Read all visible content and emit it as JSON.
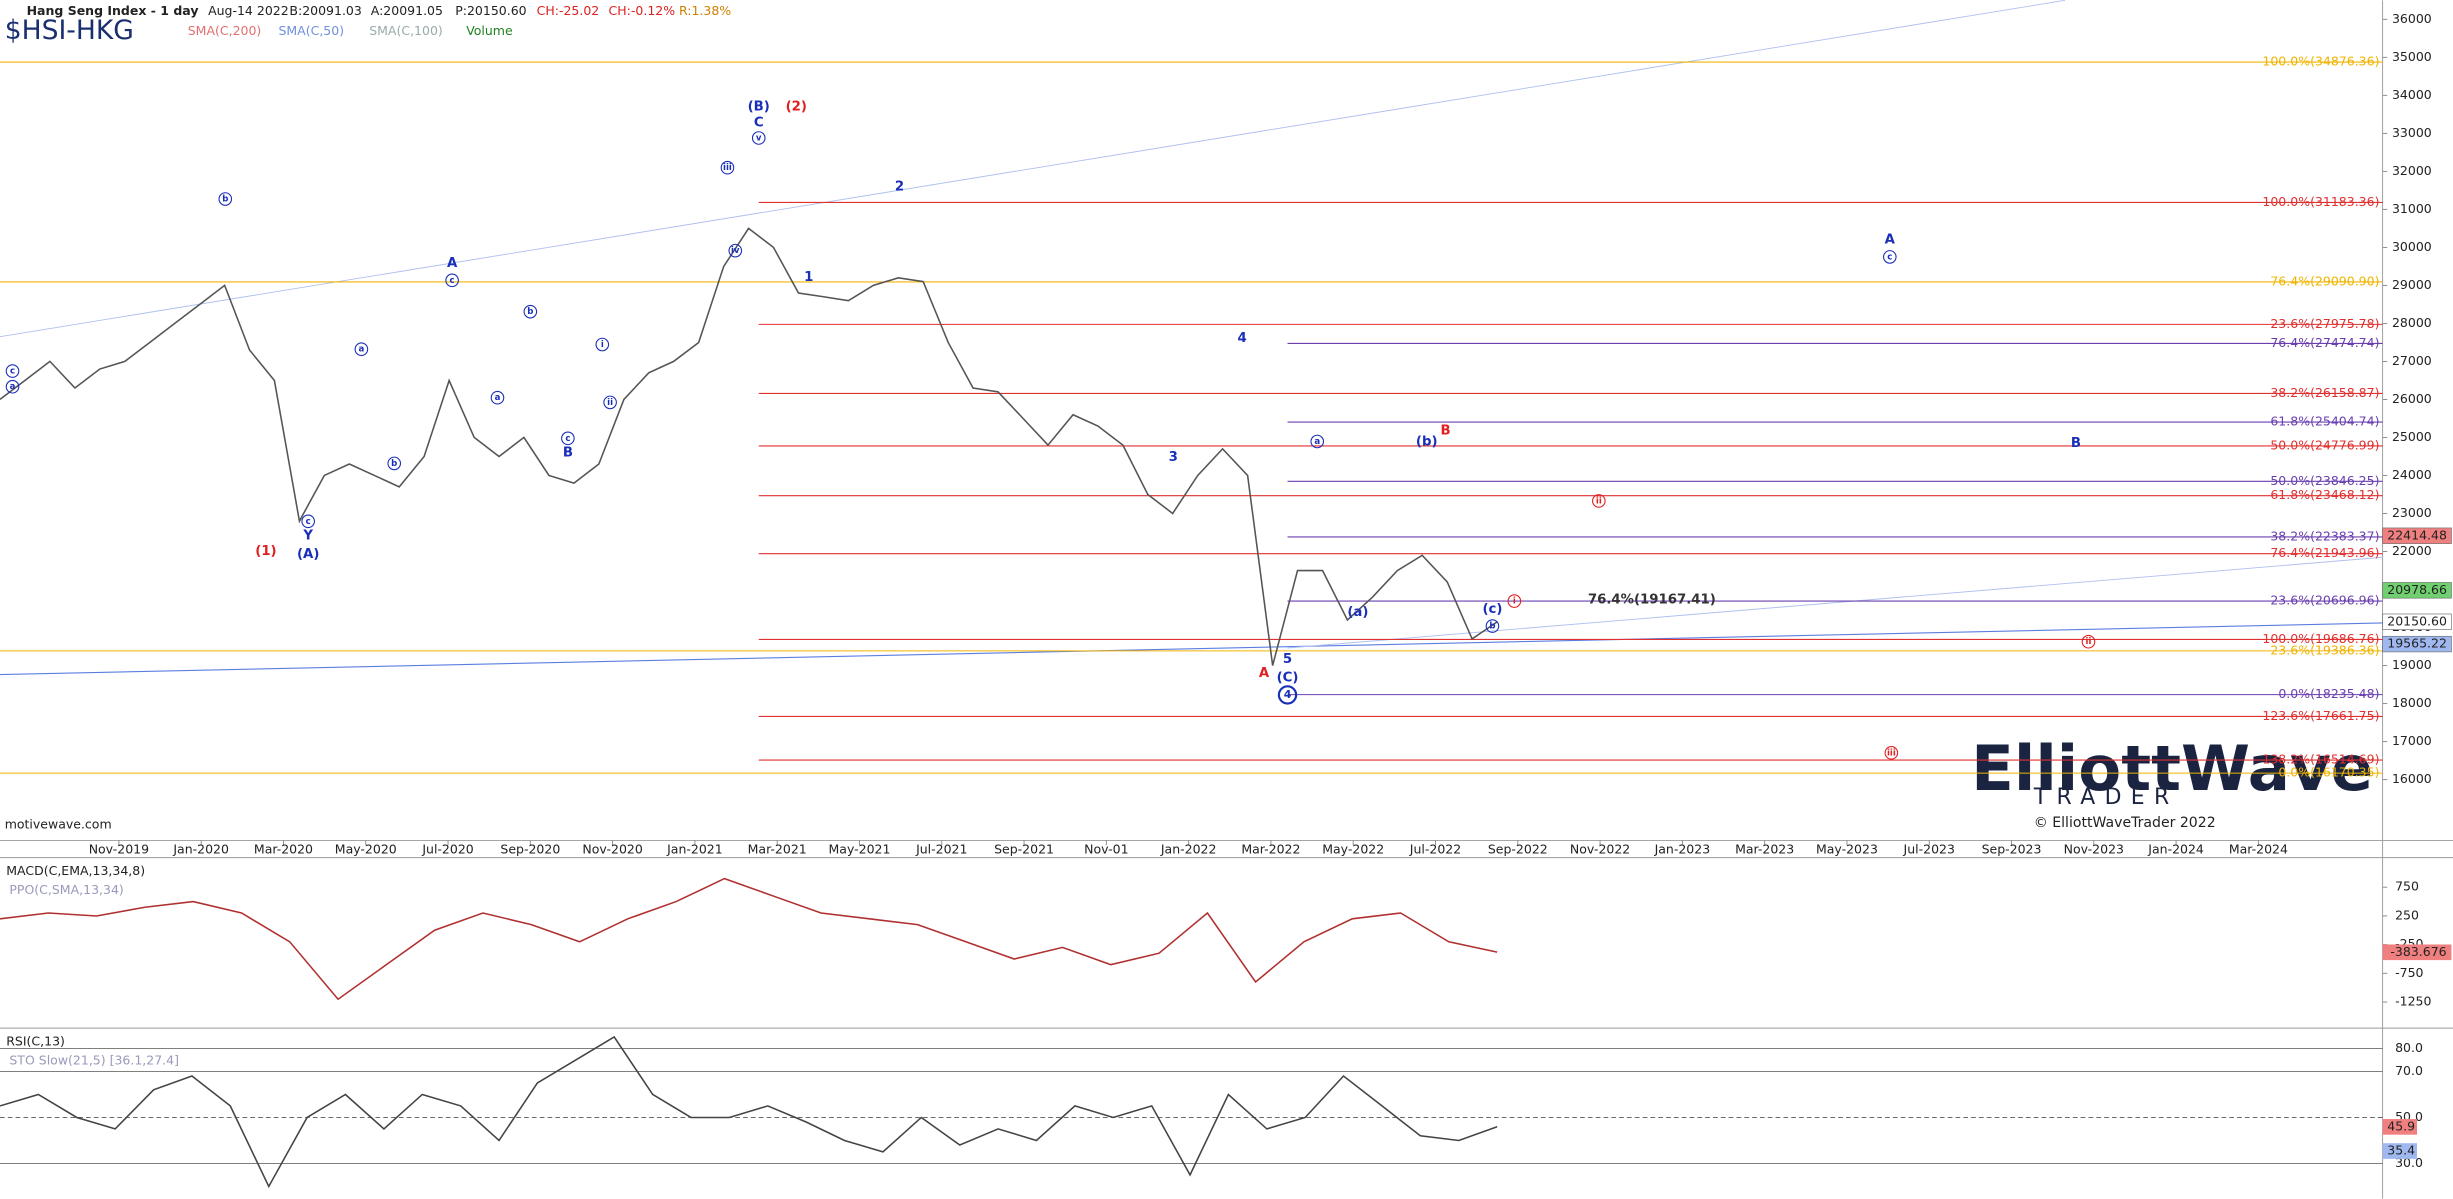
{
  "chart_data": {
    "type": "line",
    "header": {
      "title": "Hang Seng Index - 1 day",
      "date": "Aug-14 2022",
      "bid": "B:20091.03",
      "ask": "A:20091.05",
      "price": "P:20150.60",
      "change": "CH:-25.02",
      "change_pct": "CH:-0.12%",
      "range": "R:1.38%",
      "symbol": "$HSI-HKG",
      "studies": [
        "SMA(C,200)",
        "SMA(C,50)",
        "SMA(C,100)",
        "Volume"
      ]
    },
    "footer": "motivewave.com",
    "copyright": "© ElliottWaveTrader 2022",
    "logo": [
      "ElliottWave",
      "TRADER"
    ],
    "categories": [
      "Nov-2019",
      "Jan-2020",
      "Mar-2020",
      "May-2020",
      "Jul-2020",
      "Sep-2020",
      "Nov-2020",
      "Jan-2021",
      "Mar-2021",
      "May-2021",
      "Jul-2021",
      "Sep-2021",
      "Nov-01",
      "Jan-2022",
      "Mar-2022",
      "May-2022",
      "Jul-2022",
      "Sep-2022",
      "Nov-2022",
      "Jan-2023",
      "Mar-2023",
      "May-2023",
      "Jul-2023",
      "Sep-2023",
      "Nov-2023",
      "Jan-2024",
      "Mar-2024"
    ],
    "ylim": [
      14400,
      36500
    ],
    "yticks": [
      16000,
      17000,
      18000,
      19000,
      20000,
      21000,
      22000,
      23000,
      24000,
      25000,
      26000,
      27000,
      28000,
      29000,
      30000,
      31000,
      32000,
      33000,
      34000,
      35000,
      36000
    ],
    "price": {
      "color": "#555555",
      "values": [
        26000,
        26500,
        27000,
        26300,
        26800,
        27000,
        27500,
        28000,
        28500,
        29000,
        27300,
        26500,
        22800,
        24000,
        24300,
        24000,
        23700,
        24500,
        26500,
        25000,
        24500,
        25000,
        24000,
        23800,
        24300,
        26000,
        26700,
        27000,
        27500,
        29500,
        30500,
        30000,
        28800,
        28700,
        28600,
        29000,
        29200,
        29100,
        27500,
        26300,
        26200,
        25500,
        24800,
        25600,
        25300,
        24800,
        23500,
        23000,
        24000,
        24700,
        24000,
        19000,
        21500,
        21500,
        20200,
        20800,
        21500,
        21900,
        21200,
        19700,
        20150
      ]
    },
    "fib_groups": [
      {
        "color": "#f0b400",
        "levels": [
          {
            "value": 34876.36,
            "label": "100.0%(34876.36)"
          },
          {
            "value": 29090.9,
            "label": "76.4%(29090.90)"
          },
          {
            "value": 19386.36,
            "label": "23.6%(19386.36)"
          },
          {
            "value": 16170.35,
            "label": "0.0%(16170.35)"
          }
        ]
      },
      {
        "color": "#e03030",
        "levels": [
          {
            "value": 31183.36,
            "label": "100.0%(31183.36)"
          },
          {
            "value": 27975.78,
            "label": "23.6%(27975.78)"
          },
          {
            "value": 26158.87,
            "label": "38.2%(26158.87)"
          },
          {
            "value": 24776.99,
            "label": "50.0%(24776.99)"
          },
          {
            "value": 23468.12,
            "label": "61.8%(23468.12)"
          },
          {
            "value": 21943.96,
            "label": "76.4%(21943.96)"
          },
          {
            "value": 19686.76,
            "label": "100.0%(19686.76)"
          },
          {
            "value": 17661.75,
            "label": "123.6%(17661.75)"
          },
          {
            "value": 16514.69,
            "label": "138.2%(16514.69)"
          }
        ]
      },
      {
        "color": "#6a3fb0",
        "levels": [
          {
            "value": 27474.74,
            "label": "76.4%(27474.74)"
          },
          {
            "value": 25404.74,
            "label": "61.8%(25404.74)"
          },
          {
            "value": 23846.25,
            "label": "50.0%(23846.25)"
          },
          {
            "value": 22383.37,
            "label": "38.2%(22383.37)"
          },
          {
            "value": 20696.96,
            "label": "23.6%(20696.96)"
          },
          {
            "value": 18235.48,
            "label": "0.0%(18235.48)"
          }
        ]
      }
    ],
    "price_tags": [
      {
        "value": 22414.48,
        "label": "22414.48",
        "color": "#f08080"
      },
      {
        "value": 20978.66,
        "label": "20978.66",
        "color": "#70d070"
      },
      {
        "value": 20150.6,
        "label": "20150.60",
        "color": "#ffffff"
      },
      {
        "value": 19565.22,
        "label": "19565.22",
        "color": "#a0b8f0"
      }
    ],
    "annotations": [
      {
        "text": "(B)",
        "color": "#1a2fb8"
      },
      {
        "text": "C",
        "color": "#1a2fb8"
      },
      {
        "text": "(2)",
        "color": "#e02020"
      },
      {
        "text": "(1)",
        "color": "#e02020"
      },
      {
        "text": "Y",
        "color": "#1a2fb8"
      },
      {
        "text": "(A)",
        "color": "#1a2fb8"
      },
      {
        "text": "A",
        "color": "#1a2fb8"
      },
      {
        "text": "B",
        "color": "#1a2fb8"
      },
      {
        "text": "1",
        "color": "#1a2fb8"
      },
      {
        "text": "2",
        "color": "#1a2fb8"
      },
      {
        "text": "3",
        "color": "#1a2fb8"
      },
      {
        "text": "4",
        "color": "#1a2fb8"
      },
      {
        "text": "5",
        "color": "#1a2fb8"
      },
      {
        "text": "A",
        "color": "#e02020"
      },
      {
        "text": "B",
        "color": "#e02020"
      },
      {
        "text": "A",
        "color": "#1a2fb8"
      },
      {
        "text": "B",
        "color": "#1a2fb8"
      },
      {
        "text": "(a)",
        "color": "#1a2fb8"
      },
      {
        "text": "(b)",
        "color": "#1a2fb8"
      },
      {
        "text": "(c)",
        "color": "#1a2fb8"
      },
      {
        "text": "76.4%(19167.41)",
        "color": "#333333"
      },
      {
        "text": "(C)",
        "color": "#1a2fb8"
      },
      {
        "text": "b",
        "color": "#1a2fb8",
        "circled": true
      },
      {
        "text": "c",
        "color": "#1a2fb8",
        "circled": true
      },
      {
        "text": "a",
        "color": "#1a2fb8",
        "circled": true
      },
      {
        "text": "a",
        "color": "#1a2fb8",
        "circled": true
      },
      {
        "text": "b",
        "color": "#1a2fb8",
        "circled": true
      },
      {
        "text": "c",
        "color": "#1a2fb8",
        "circled": true
      },
      {
        "text": "c",
        "color": "#1a2fb8",
        "circled": true
      },
      {
        "text": "a",
        "color": "#1a2fb8",
        "circled": true
      },
      {
        "text": "b",
        "color": "#1a2fb8",
        "circled": true
      },
      {
        "text": "c",
        "color": "#1a2fb8",
        "circled": true
      },
      {
        "text": "i",
        "color": "#1a2fb8",
        "circled": true
      },
      {
        "text": "ii",
        "color": "#1a2fb8",
        "circled": true
      },
      {
        "text": "iii",
        "color": "#1a2fb8",
        "circled": true
      },
      {
        "text": "iv",
        "color": "#1a2fb8",
        "circled": true
      },
      {
        "text": "v",
        "color": "#1a2fb8",
        "circled": true
      },
      {
        "text": "a",
        "color": "#1a2fb8",
        "circled": true
      },
      {
        "text": "c",
        "color": "#1a2fb8",
        "circled": true
      },
      {
        "text": "b",
        "color": "#1a2fb8",
        "circled": true
      },
      {
        "text": "i",
        "color": "#e02020",
        "circled": true
      },
      {
        "text": "ii",
        "color": "#e02020",
        "circled": true
      },
      {
        "text": "iii",
        "color": "#e02020",
        "circled": true
      },
      {
        "text": "ii",
        "color": "#e02020",
        "circled": true
      },
      {
        "text": "4",
        "color": "#1a2fb8",
        "circled": true
      }
    ],
    "macd": {
      "title": "MACD(C,EMA,13,34,8)",
      "subtitle": "PPO(C,SMA,13,34)",
      "color": "#b03030",
      "ylim": [
        -1705,
        1265
      ],
      "yticks": [
        750,
        250,
        -250,
        -750,
        -1250
      ],
      "tag": {
        "value": -383.676,
        "label": "-383.676"
      },
      "values": [
        200,
        300,
        250,
        400,
        500,
        300,
        -200,
        -1200,
        -600,
        0,
        300,
        100,
        -200,
        200,
        500,
        900,
        600,
        300,
        200,
        100,
        -200,
        -500,
        -300,
        -600,
        -400,
        300,
        -900,
        -200,
        200,
        300,
        -200,
        -380
      ]
    },
    "rsi": {
      "title": "RSI(C,13)",
      "subtitle": "STO Slow(21,5) [36.1,27.4]",
      "color": "#444444",
      "ylim": [
        14.7,
        88.8
      ],
      "yticks": [
        {
          "value": 80,
          "label": "80.0"
        },
        {
          "value": 70,
          "label": "70.0"
        },
        {
          "value": 50,
          "label": "50.0"
        },
        {
          "value": 30,
          "label": "30.0"
        }
      ],
      "tags": [
        {
          "value": 45.9,
          "label": "45.9",
          "color": "#f08080"
        },
        {
          "value": 35.4,
          "label": "35.4",
          "color": "#a0b8f0"
        }
      ],
      "values": [
        55,
        60,
        50,
        45,
        62,
        68,
        55,
        20,
        50,
        60,
        45,
        60,
        55,
        40,
        65,
        75,
        85,
        60,
        50,
        50,
        55,
        48,
        40,
        35,
        50,
        38,
        45,
        40,
        55,
        50,
        55,
        25,
        60,
        45,
        50,
        68,
        55,
        42,
        40,
        46
      ]
    }
  }
}
